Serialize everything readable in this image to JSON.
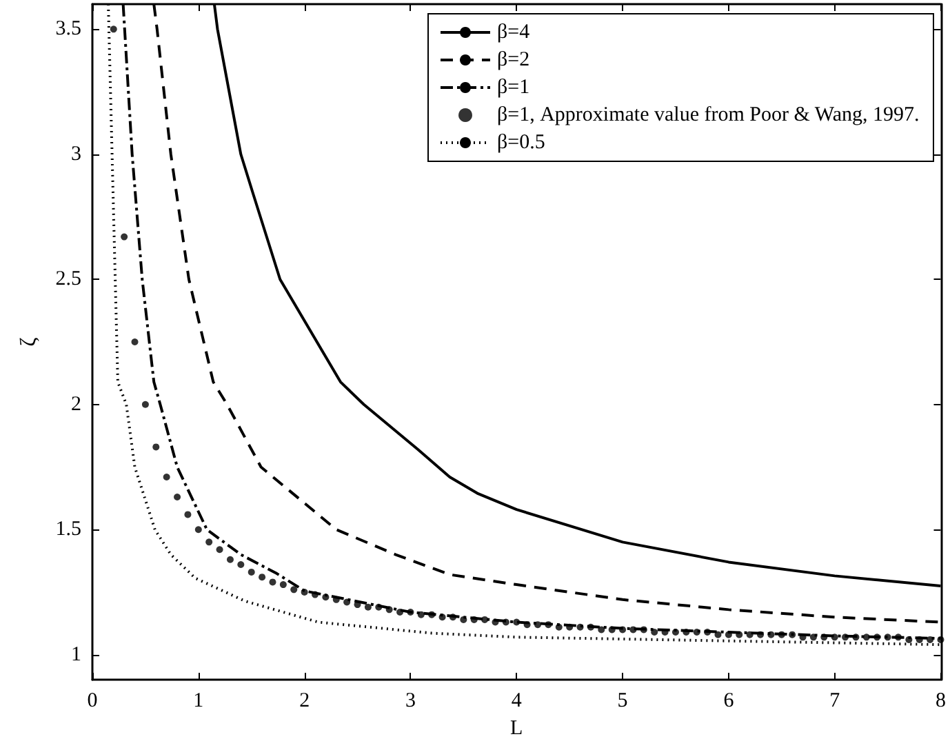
{
  "chart_data": {
    "type": "line",
    "xlabel": "L",
    "ylabel": "ζ",
    "xlim": [
      0,
      8
    ],
    "xticks": [
      0,
      1,
      2,
      3,
      4,
      5,
      6,
      7,
      8
    ],
    "ylim": [
      0.9,
      3.6
    ],
    "yticks": [
      1,
      1.5,
      2,
      2.5,
      3,
      3.5
    ],
    "grid": false,
    "legend": "top right",
    "series": [
      {
        "name": "β=4",
        "color": "#000000",
        "line_style": "solid",
        "x": [
          1.15,
          1.18,
          1.4,
          1.51,
          1.77,
          2.34,
          2.56,
          3.07,
          3.37,
          3.63,
          4,
          5,
          6,
          7,
          8
        ],
        "values": [
          3.6,
          3.5,
          3.0,
          2.85,
          2.5,
          2.09,
          2.0,
          1.82,
          1.71,
          1.645,
          1.58,
          1.45,
          1.37,
          1.315,
          1.275
        ]
      },
      {
        "name": "β=2",
        "color": "#000000",
        "line_style": "dashed",
        "x": [
          0.58,
          0.61,
          0.74,
          0.91,
          1.14,
          1.27,
          1.59,
          2.3,
          2.86,
          3.37,
          4,
          5,
          6,
          7,
          8
        ],
        "values": [
          3.6,
          3.5,
          3.0,
          2.5,
          2.09,
          2.0,
          1.75,
          1.5,
          1.4,
          1.32,
          1.28,
          1.22,
          1.18,
          1.15,
          1.13
        ]
      },
      {
        "name": "β=1",
        "color": "#000000",
        "line_style": "dashdot",
        "x": [
          0.29,
          0.375,
          0.47,
          0.58,
          0.64,
          0.8,
          1.08,
          1.4,
          1.74,
          2,
          3,
          4,
          5,
          6,
          7,
          8
        ],
        "values": [
          3.6,
          3.0,
          2.5,
          2.09,
          2.0,
          1.75,
          1.5,
          1.4,
          1.324,
          1.255,
          1.17,
          1.13,
          1.105,
          1.09,
          1.075,
          1.065
        ]
      },
      {
        "name": "β=1, Approximate value from Poor & Wang, 1997.",
        "type": "scatter",
        "marker": "circle",
        "color": "#000000",
        "x": [
          0.2,
          0.3,
          0.4,
          0.5,
          0.6,
          0.7,
          0.8,
          0.9,
          1.0,
          1.1,
          1.2,
          1.3,
          1.4,
          1.5,
          1.6,
          1.7,
          1.8,
          1.9,
          2.0,
          2.1,
          2.2,
          2.3,
          2.4,
          2.5,
          2.6,
          2.7,
          2.8,
          2.9,
          3.0,
          3.1,
          3.2,
          3.3,
          3.4,
          3.5,
          3.6,
          3.7,
          3.8,
          3.9,
          4.0,
          4.1,
          4.2,
          4.3,
          4.4,
          4.5,
          4.6,
          4.7,
          4.8,
          4.9,
          5.0,
          5.1,
          5.2,
          5.3,
          5.4,
          5.5,
          5.6,
          5.7,
          5.8,
          5.9,
          6.0,
          6.1,
          6.2,
          6.3,
          6.4,
          6.5,
          6.6,
          6.7,
          6.8,
          6.9,
          7.0,
          7.1,
          7.2,
          7.3,
          7.4,
          7.5,
          7.6,
          7.7,
          7.8,
          7.9,
          8.0
        ],
        "values": [
          3.5,
          2.67,
          2.25,
          2.0,
          1.83,
          1.71,
          1.63,
          1.56,
          1.5,
          1.45,
          1.42,
          1.38,
          1.36,
          1.33,
          1.31,
          1.29,
          1.28,
          1.26,
          1.25,
          1.24,
          1.23,
          1.22,
          1.21,
          1.2,
          1.19,
          1.19,
          1.18,
          1.17,
          1.17,
          1.16,
          1.16,
          1.15,
          1.15,
          1.14,
          1.14,
          1.14,
          1.13,
          1.13,
          1.13,
          1.12,
          1.12,
          1.12,
          1.11,
          1.11,
          1.11,
          1.11,
          1.1,
          1.1,
          1.1,
          1.1,
          1.1,
          1.09,
          1.09,
          1.09,
          1.09,
          1.09,
          1.09,
          1.08,
          1.08,
          1.08,
          1.08,
          1.08,
          1.08,
          1.08,
          1.08,
          1.07,
          1.07,
          1.07,
          1.07,
          1.07,
          1.07,
          1.07,
          1.07,
          1.07,
          1.07,
          1.06,
          1.06,
          1.06,
          1.06
        ]
      },
      {
        "name": "β=0.5",
        "color": "#000000",
        "line_style": "dotted",
        "x": [
          0.15,
          0.24,
          0.32,
          0.4,
          0.59,
          0.74,
          0.97,
          1.44,
          2.13,
          3.2,
          4,
          8
        ],
        "values": [
          3.6,
          2.09,
          2.0,
          1.75,
          1.5,
          1.4,
          1.306,
          1.214,
          1.13,
          1.086,
          1.07,
          1.04
        ]
      }
    ]
  }
}
